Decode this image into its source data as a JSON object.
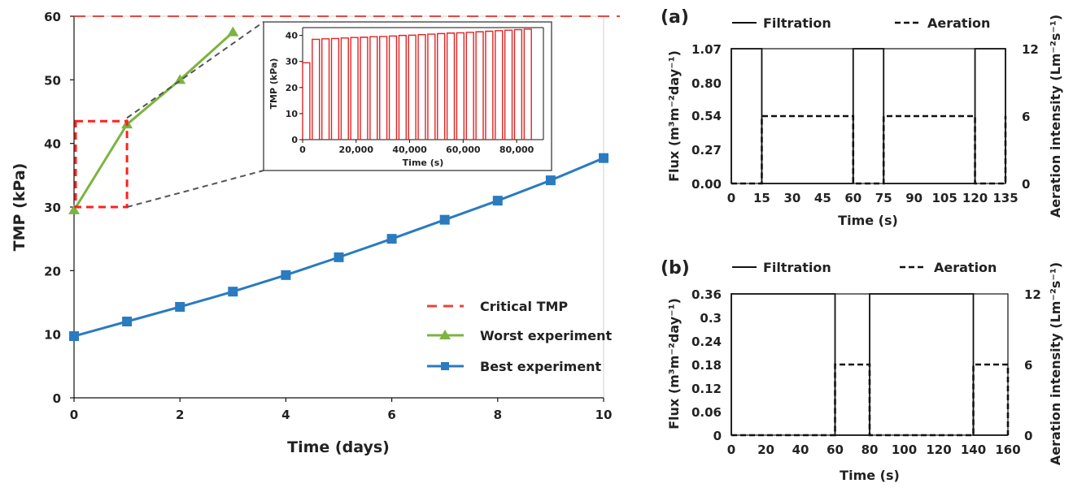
{
  "colors": {
    "critical": "#e8463c",
    "worst": "#7cb342",
    "best": "#2a7bbf",
    "inset_bars": "#e02424",
    "zoom_box": "#ff2020",
    "black": "#111111"
  },
  "chart_data": [
    {
      "type": "line",
      "xlabel": "Time (days)",
      "ylabel": "TMP (kPa)",
      "xlim": [
        0,
        10
      ],
      "ylim": [
        0,
        60
      ],
      "xticks": [
        "0",
        "2",
        "4",
        "6",
        "8",
        "10"
      ],
      "yticks": [
        "0",
        "10",
        "20",
        "30",
        "40",
        "50",
        "60"
      ],
      "grid": false,
      "legend_position": "bottom-right",
      "critical_tmp": 60,
      "series": [
        {
          "name": "Critical TMP",
          "style": "dashed",
          "x": [
            0,
            10
          ],
          "y": [
            60,
            60
          ]
        },
        {
          "name": "Worst experiment",
          "marker": "triangle",
          "x": [
            0,
            1,
            2,
            3
          ],
          "y": [
            29.5,
            43,
            50,
            57.5
          ]
        },
        {
          "name": "Best experiment",
          "marker": "square",
          "x": [
            0,
            1,
            2,
            3,
            4,
            5,
            6,
            7,
            8,
            9,
            10
          ],
          "y": [
            9.7,
            12,
            14.3,
            16.7,
            19.3,
            22.1,
            25,
            28,
            31,
            34.2,
            37.7
          ]
        }
      ],
      "zoom_region": {
        "x": [
          0,
          1
        ],
        "y": [
          30,
          43.5
        ]
      }
    },
    {
      "type": "bar",
      "role": "inset",
      "xlabel": "Time (s)",
      "ylabel": "TMP (kPa)",
      "xlim": [
        0,
        90000
      ],
      "ylim": [
        0,
        43
      ],
      "xticks": [
        "0",
        "20,000",
        "40,000",
        "60,000",
        "80,000"
      ],
      "yticks": [
        "0",
        "10",
        "20",
        "30",
        "40"
      ],
      "pulse_period_s": 3600,
      "pulse_width_s": 2700,
      "pulse_start_s": 0,
      "peaks": [
        29.5,
        38.5,
        38.7,
        38.8,
        39.0,
        39.2,
        39.3,
        39.5,
        39.6,
        39.8,
        40.0,
        40.1,
        40.3,
        40.5,
        40.7,
        40.9,
        41.0,
        41.2,
        41.4,
        41.6,
        41.8,
        42.0,
        42.2,
        42.4
      ]
    },
    {
      "type": "line",
      "panel": "(a)",
      "xlabel": "Time (s)",
      "ylabel": "Flux (m³m⁻²day⁻¹)",
      "y2label": "Aeration intensity (Lm⁻²s⁻¹)",
      "xlim": [
        0,
        135
      ],
      "ylim": [
        0,
        1.07
      ],
      "y2lim": [
        0,
        12
      ],
      "xticks": [
        "0",
        "15",
        "30",
        "45",
        "60",
        "75",
        "90",
        "105",
        "120",
        "135"
      ],
      "yticks": [
        "0.00",
        "0.27",
        "0.54",
        "0.80",
        "1.07"
      ],
      "y2ticks": [
        "0",
        "6",
        "12"
      ],
      "legend_position": "top",
      "series": [
        {
          "name": "Filtration",
          "style": "solid",
          "axis": "left",
          "x": [
            0,
            0,
            15,
            15,
            60,
            60,
            75,
            75,
            120,
            120,
            135,
            135
          ],
          "y": [
            0,
            1.07,
            1.07,
            0,
            0,
            1.07,
            1.07,
            0,
            0,
            1.07,
            1.07,
            0
          ]
        },
        {
          "name": "Aeration",
          "style": "dashed",
          "axis": "right",
          "x": [
            0,
            15,
            15,
            60,
            60,
            75,
            75,
            120,
            120,
            135,
            135
          ],
          "y": [
            0,
            0,
            6,
            6,
            0,
            0,
            6,
            6,
            0,
            0,
            6
          ]
        }
      ]
    },
    {
      "type": "line",
      "panel": "(b)",
      "xlabel": "Time (s)",
      "ylabel": "Flux (m³m⁻²day⁻¹)",
      "y2label": "Aeration intensity (Lm⁻²s⁻¹)",
      "xlim": [
        0,
        160
      ],
      "ylim": [
        0,
        0.36
      ],
      "y2lim": [
        0,
        12
      ],
      "xticks": [
        "0",
        "20",
        "40",
        "60",
        "80",
        "100",
        "120",
        "140",
        "160"
      ],
      "yticks": [
        "0",
        "0.06",
        "0.12",
        "0.18",
        "0.24",
        "0.3",
        "0.36"
      ],
      "y2ticks": [
        "0",
        "6",
        "12"
      ],
      "legend_position": "top",
      "series": [
        {
          "name": "Filtration",
          "style": "solid",
          "axis": "left",
          "x": [
            0,
            0,
            60,
            60,
            80,
            80,
            140,
            140,
            160
          ],
          "y": [
            0,
            0.36,
            0.36,
            0,
            0,
            0.36,
            0.36,
            0,
            0
          ]
        },
        {
          "name": "Aeration",
          "style": "dashed",
          "axis": "right",
          "x": [
            0,
            60,
            60,
            80,
            80,
            140,
            140,
            160,
            160
          ],
          "y": [
            0,
            0,
            6,
            6,
            0,
            0,
            6,
            6,
            0
          ]
        }
      ]
    }
  ]
}
